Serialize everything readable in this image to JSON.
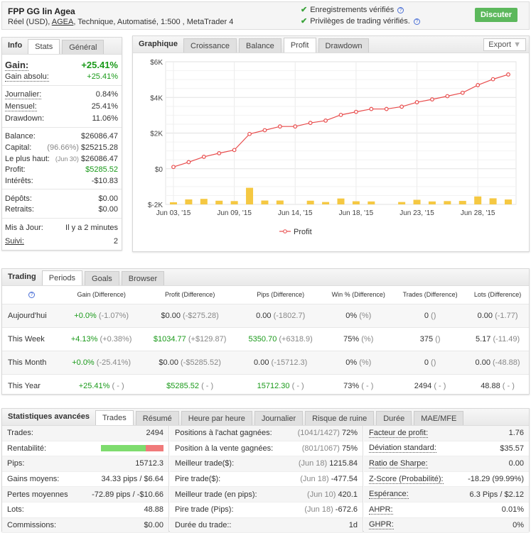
{
  "header": {
    "title": "FPP GG lin Agea",
    "sub_prefix": "Réel (USD), ",
    "sub_link": "AGEA",
    "sub_suffix": ", Technique, Automatisé, 1:500 , MetaTrader 4",
    "verified": [
      "Enregistrements vérifiés",
      "Privilèges de trading vérifiés."
    ],
    "discuss": "Discuter"
  },
  "info": {
    "title": "Info",
    "tabs": [
      "Stats",
      "Général"
    ],
    "gain_label": "Gain:",
    "gain": "+25.41%",
    "abs_label": "Gain absolu:",
    "abs": "+25.41%",
    "rows1": [
      [
        "Journalier:",
        "0.84%"
      ],
      [
        "Mensuel:",
        "25.41%"
      ],
      [
        "Drawdown:",
        "11.06%"
      ]
    ],
    "balance": [
      "Balance:",
      "$26086.47"
    ],
    "capital": [
      "Capital:",
      "(96.66%)",
      "$25215.28"
    ],
    "high": [
      "Le plus haut:",
      "(Jun 30)",
      "$26086.47"
    ],
    "profit": [
      "Profit:",
      "$5285.52"
    ],
    "interest": [
      "Intérêts:",
      "-$10.83"
    ],
    "deposits": [
      "Dépôts:",
      "$0.00"
    ],
    "withdrawals": [
      "Retraits:",
      "$0.00"
    ],
    "updated": [
      "Mis à Jour:",
      "Il y a 2 minutes"
    ],
    "followers": [
      "Suivi:",
      "2"
    ]
  },
  "chart": {
    "title": "Graphique",
    "tabs": [
      "Croissance",
      "Balance",
      "Profit",
      "Drawdown"
    ],
    "active": "Profit",
    "export": "Export"
  },
  "chart_data": {
    "type": "line",
    "title": "Profit",
    "ylabel": "",
    "ylim": [
      -2000,
      6000
    ],
    "yticks": [
      "$6K",
      "$4K",
      "$2K",
      "$0",
      "$-2K"
    ],
    "ytick_values": [
      6000,
      4000,
      2000,
      0,
      -2000
    ],
    "xticks": [
      {
        "label": "Jun 03, '15",
        "index": 0
      },
      {
        "label": "Jun 09, '15",
        "index": 4
      },
      {
        "label": "Jun 14, '15",
        "index": 8
      },
      {
        "label": "Jun 18, '15",
        "index": 12
      },
      {
        "label": "Jun 23, '15",
        "index": 16
      },
      {
        "label": "Jun 28, '15",
        "index": 20
      }
    ],
    "series": [
      {
        "name": "Profit",
        "color": "#e84c4c",
        "values": [
          100,
          370,
          670,
          870,
          1050,
          1950,
          2160,
          2370,
          2370,
          2570,
          2700,
          3020,
          3190,
          3350,
          3350,
          3480,
          3730,
          3890,
          4070,
          4260,
          4690,
          5020,
          5285.52
        ]
      }
    ],
    "bar_color": "#f5c842",
    "legend": "bottom"
  },
  "trading": {
    "title": "Trading",
    "tabs": [
      "Periods",
      "Goals",
      "Browser"
    ],
    "headers": [
      "Gain (Difference)",
      "Profit (Difference)",
      "Pips (Difference)",
      "Win % (Difference)",
      "Trades (Difference)",
      "Lots (Difference)"
    ],
    "rows": [
      {
        "name": "Aujourd'hui",
        "cells": [
          [
            "+0.0%",
            "(-1.07%)",
            1
          ],
          [
            "$0.00",
            "(-$275.28)",
            0
          ],
          [
            "0.00",
            "(-1802.7)",
            0
          ],
          [
            "0%",
            "(%)",
            0
          ],
          [
            "0",
            "()",
            0
          ],
          [
            "0.00",
            "(-1.77)",
            0
          ]
        ]
      },
      {
        "name": "This Week",
        "cells": [
          [
            "+4.13%",
            "(+0.38%)",
            1
          ],
          [
            "$1034.77",
            "(+$129.87)",
            1
          ],
          [
            "5350.70",
            "(+6318.9)",
            1
          ],
          [
            "75%",
            "(%)",
            0
          ],
          [
            "375",
            "()",
            0
          ],
          [
            "5.17",
            "(-11.49)",
            0
          ]
        ]
      },
      {
        "name": "This Month",
        "cells": [
          [
            "+0.0%",
            "(-25.41%)",
            1
          ],
          [
            "$0.00",
            "(-$5285.52)",
            0
          ],
          [
            "0.00",
            "(-15712.3)",
            0
          ],
          [
            "0%",
            "(%)",
            0
          ],
          [
            "0",
            "()",
            0
          ],
          [
            "0.00",
            "(-48.88)",
            0
          ]
        ]
      },
      {
        "name": "This Year",
        "cells": [
          [
            "+25.41%",
            "( - )",
            1
          ],
          [
            "$5285.52",
            "( - )",
            1
          ],
          [
            "15712.30",
            "( - )",
            1
          ],
          [
            "73%",
            "( - )",
            0
          ],
          [
            "2494",
            "( - )",
            0
          ],
          [
            "48.88",
            "( - )",
            0
          ]
        ]
      }
    ]
  },
  "advanced": {
    "title": "Statistiques avancées",
    "tabs": [
      "Trades",
      "Résumé",
      "Heure par heure",
      "Journalier",
      "Risque de ruine",
      "Durée",
      "MAE/MFE"
    ],
    "profitability_pct": 72,
    "col1": [
      [
        "Trades:",
        "",
        "2494"
      ],
      [
        "Rentabilité:",
        "",
        ""
      ],
      [
        "Pips:",
        "",
        "15712.3"
      ],
      [
        "Gains moyens:",
        "",
        "34.33 pips / $6.64"
      ],
      [
        "Pertes moyennes",
        "",
        "-72.89 pips / -$10.66"
      ],
      [
        "Lots:",
        "",
        "48.88"
      ],
      [
        "Commissions:",
        "",
        "$0.00"
      ]
    ],
    "col2": [
      [
        "Positions à l'achat gagnées:",
        "(1041/1427)",
        "72%"
      ],
      [
        "Position à la vente gagnées:",
        "(801/1067)",
        "75%"
      ],
      [
        "Meilleur trade($):",
        "(Jun 18)",
        "1215.84"
      ],
      [
        "Pire trade($):",
        "(Jun 18)",
        "-477.54"
      ],
      [
        "Meilleur trade (en pips):",
        "(Jun 10)",
        "420.1"
      ],
      [
        "Pire trade (Pips):",
        "(Jun 18)",
        "-672.6"
      ],
      [
        "Durée du trade::",
        "",
        "1d"
      ]
    ],
    "col3": [
      [
        "Facteur de profit:",
        "",
        "1.76"
      ],
      [
        "Déviation standard:",
        "",
        "$35.57"
      ],
      [
        "Ratio de Sharpe:",
        "",
        "0.00"
      ],
      [
        "Z-Score (Probabilité):",
        "",
        "-18.29 (99.99%)"
      ],
      [
        "Espérance:",
        "",
        "6.3 Pips / $2.12"
      ],
      [
        "AHPR:",
        "",
        "0.01%"
      ],
      [
        "GHPR:",
        "",
        "0%"
      ]
    ]
  }
}
